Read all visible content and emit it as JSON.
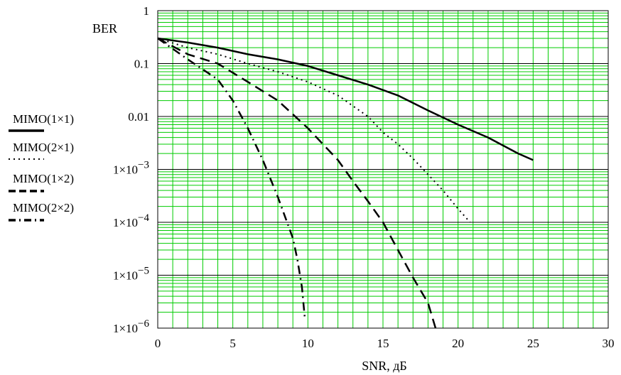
{
  "chart_data": {
    "type": "line",
    "xlabel": "SNR, дБ",
    "ylabel": "BER",
    "xlim": [
      0,
      30
    ],
    "ylim": [
      1e-06,
      1
    ],
    "yscale": "log",
    "x_ticks": [
      "0",
      "5",
      "10",
      "15",
      "20",
      "25",
      "30"
    ],
    "y_ticks": [
      {
        "base": "1",
        "exp": ""
      },
      {
        "base": "0.1",
        "exp": ""
      },
      {
        "base": "0.01",
        "exp": ""
      },
      {
        "base": "1×10",
        "exp": "−3"
      },
      {
        "base": "1×10",
        "exp": "−4"
      },
      {
        "base": "1×10",
        "exp": "−5"
      },
      {
        "base": "1×10",
        "exp": "−6"
      }
    ],
    "grid": true,
    "major_grid_color": "#000000",
    "minor_grid_color": "#00cc00",
    "legend_position": "left",
    "series": [
      {
        "name": "MIMO(1×1)",
        "style": "solid",
        "x": [
          0,
          2,
          4,
          6,
          8,
          10,
          12,
          14,
          16,
          18,
          20,
          22,
          24,
          25
        ],
        "y": [
          0.3,
          0.25,
          0.2,
          0.15,
          0.12,
          0.09,
          0.06,
          0.04,
          0.025,
          0.013,
          0.007,
          0.004,
          0.002,
          0.0015
        ]
      },
      {
        "name": "MIMO(2×1)",
        "style": "dotted",
        "x": [
          0,
          2,
          4,
          6,
          8,
          10,
          12,
          14,
          15,
          16,
          17,
          18,
          19,
          20,
          20.8
        ],
        "y": [
          0.3,
          0.2,
          0.15,
          0.1,
          0.07,
          0.045,
          0.025,
          0.01,
          0.005,
          0.003,
          0.0016,
          0.0008,
          0.0004,
          0.00018,
          0.0001
        ]
      },
      {
        "name": "MIMO(1×2)",
        "style": "dashed",
        "x": [
          0,
          2,
          4,
          6,
          8,
          10,
          12,
          13,
          14,
          15,
          16,
          17,
          18,
          18.5
        ],
        "y": [
          0.3,
          0.15,
          0.1,
          0.045,
          0.02,
          0.006,
          0.0015,
          0.0006,
          0.00025,
          0.0001,
          3e-05,
          9e-06,
          3e-06,
          1e-06
        ]
      },
      {
        "name": "MIMO(2×2)",
        "style": "dash-dot",
        "x": [
          0,
          2,
          4,
          5,
          6,
          7,
          8,
          9,
          9.3,
          9.6,
          9.8
        ],
        "y": [
          0.3,
          0.12,
          0.05,
          0.02,
          0.006,
          0.0015,
          0.0003,
          5e-05,
          2e-05,
          6e-06,
          1.5e-06
        ]
      }
    ]
  }
}
